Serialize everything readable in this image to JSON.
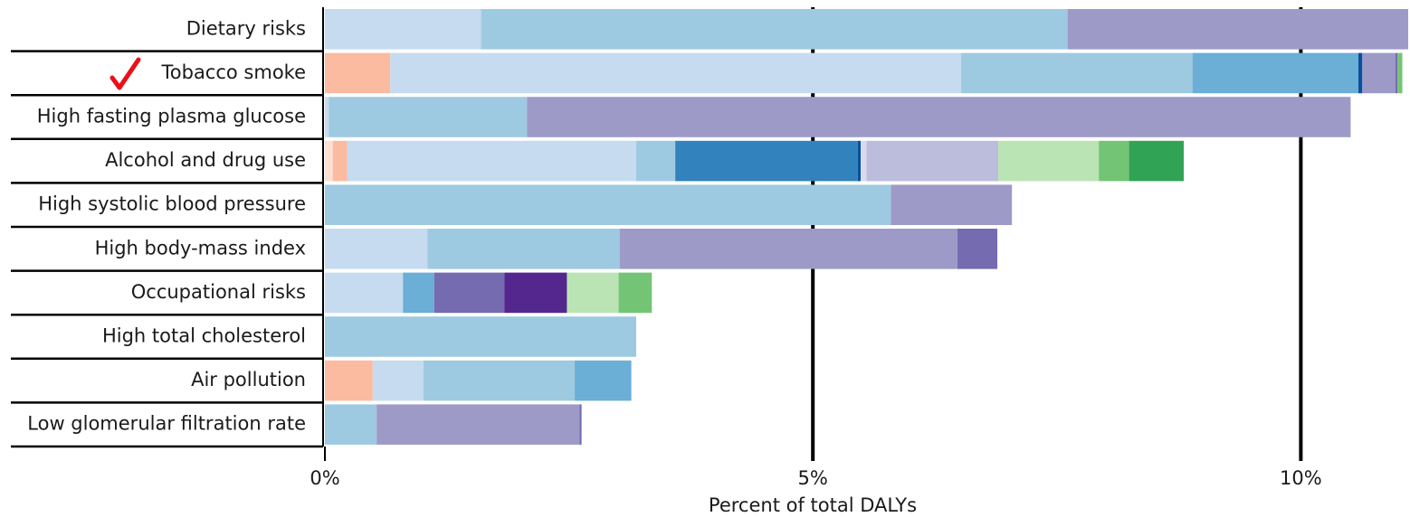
{
  "chart_data": {
    "type": "stacked_barh",
    "categories": [
      "Dietary risks",
      "Tobacco smoke",
      "High fasting plasma glucose",
      "Alcohol and drug use",
      "High systolic blood pressure",
      "High body-mass index",
      "Occupational risks",
      "High total cholesterol",
      "Air pollution",
      "Low glomerular filtration rate"
    ],
    "series": [
      {
        "color": "#fde0d2",
        "values": [
          null,
          null,
          null,
          0.08,
          null,
          null,
          null,
          null,
          null,
          null
        ]
      },
      {
        "color": "#fbbba0",
        "values": [
          null,
          0.67,
          null,
          0.15,
          null,
          null,
          null,
          null,
          0.49,
          null
        ]
      },
      {
        "color": "#c6dbef",
        "values": [
          1.6,
          5.85,
          0.04,
          2.96,
          null,
          1.05,
          0.8,
          null,
          0.52,
          null
        ]
      },
      {
        "color": "#9ecae1",
        "values": [
          6.01,
          2.37,
          2.03,
          0.4,
          5.8,
          1.97,
          null,
          3.19,
          1.55,
          0.53
        ]
      },
      {
        "color": "#6baed6",
        "values": [
          null,
          1.7,
          null,
          null,
          null,
          null,
          0.32,
          null,
          0.58,
          null
        ]
      },
      {
        "color": "#3182bd",
        "values": [
          null,
          null,
          null,
          1.87,
          null,
          null,
          null,
          null,
          null,
          null
        ]
      },
      {
        "color": "#08519c",
        "values": [
          null,
          0.04,
          null,
          0.03,
          null,
          null,
          null,
          null,
          null,
          null
        ]
      },
      {
        "color": "#dadaeb",
        "values": [
          null,
          null,
          null,
          0.06,
          null,
          null,
          null,
          null,
          null,
          null
        ]
      },
      {
        "color": "#bcbddc",
        "values": [
          null,
          null,
          null,
          1.35,
          null,
          null,
          null,
          null,
          null,
          null
        ]
      },
      {
        "color": "#9e9ac8",
        "values": [
          3.49,
          0.34,
          8.44,
          null,
          1.24,
          3.46,
          null,
          null,
          null,
          2.08
        ]
      },
      {
        "color": "#756bb1",
        "values": [
          null,
          0.02,
          null,
          null,
          null,
          0.41,
          0.72,
          null,
          null,
          0.02
        ]
      },
      {
        "color": "#54278f",
        "values": [
          null,
          null,
          null,
          null,
          null,
          null,
          0.64,
          null,
          null,
          null
        ]
      },
      {
        "color": "#bae4b3",
        "values": [
          null,
          null,
          null,
          1.03,
          null,
          null,
          0.53,
          null,
          null,
          null
        ]
      },
      {
        "color": "#74c476",
        "values": [
          null,
          0.05,
          null,
          0.31,
          null,
          null,
          0.34,
          null,
          null,
          null
        ]
      },
      {
        "color": "#31a354",
        "values": [
          null,
          null,
          null,
          0.56,
          null,
          null,
          null,
          null,
          null,
          null
        ]
      }
    ],
    "xlim": [
      0,
      11.1
    ],
    "xticks": [
      {
        "value": 0,
        "label": "0%"
      },
      {
        "value": 5,
        "label": "5%"
      },
      {
        "value": 10,
        "label": "10%"
      }
    ],
    "xlabel": "Percent of total DALYs",
    "grid": true
  }
}
